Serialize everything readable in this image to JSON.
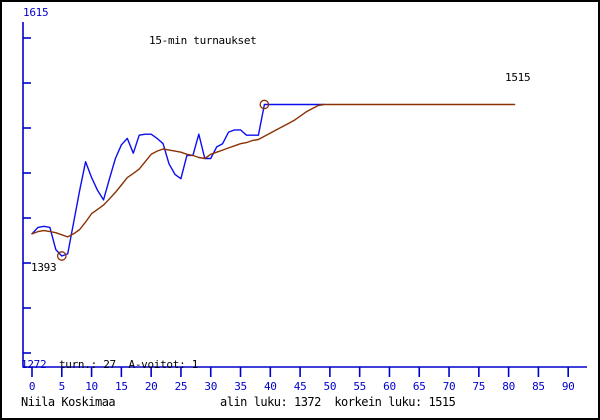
{
  "window": {
    "background": "#ffffff",
    "border_color": "#000000"
  },
  "chart": {
    "title": "15-min turnaukset",
    "player_name": "Niila Koskimaa",
    "y_axis_top_label": "1615",
    "y_axis_bottom_label": "1272",
    "start_rating_label": "1393",
    "final_rating_label": "1515",
    "stats_line": "turn.: 27  A-voitot: 1",
    "summary_line": "alin luku: 1372  korkein luku: 1515",
    "colors": {
      "axis_and_text_blue": "#0000cc",
      "rating_line_blue": "#0d0df0",
      "trend_line_brown": "#8a3203",
      "text_black": "#000000"
    }
  },
  "chart_data": {
    "type": "line",
    "title": "15-min turnaukset",
    "xlabel": "",
    "ylabel": "",
    "xlim": [
      0,
      93
    ],
    "ylim": [
      1272,
      1615
    ],
    "x_ticks": [
      0,
      5,
      10,
      15,
      20,
      25,
      30,
      35,
      40,
      45,
      50,
      55,
      60,
      65,
      70,
      75,
      80,
      85,
      90
    ],
    "grid": false,
    "legend": "none",
    "series": [
      {
        "name": "rating",
        "color": "#0d0df0",
        "values": [
          1393,
          1399,
          1400,
          1399,
          1378,
          1372,
          1374,
          1404,
          1434,
          1461,
          1446,
          1434,
          1425,
          1445,
          1464,
          1477,
          1483,
          1469,
          1486,
          1487,
          1487,
          1483,
          1478,
          1459,
          1449,
          1445,
          1467,
          1467,
          1487,
          1464,
          1464,
          1475,
          1478,
          1489,
          1491,
          1491,
          1486,
          1486,
          1486,
          1515,
          1515,
          1515,
          1515,
          1515,
          1515,
          1515,
          1515,
          1515,
          1515,
          1515
        ]
      },
      {
        "name": "trend",
        "color": "#8a3203",
        "values": [
          1393,
          1395,
          1396,
          1395,
          1394,
          1392,
          1390,
          1393,
          1397,
          1404,
          1412,
          1416,
          1420,
          1426,
          1432,
          1439,
          1446,
          1450,
          1454,
          1461,
          1468,
          1471,
          1473,
          1472,
          1471,
          1470,
          1468,
          1467,
          1465,
          1464,
          1468,
          1470,
          1472,
          1474,
          1476,
          1478,
          1479,
          1481,
          1482,
          1485,
          1488,
          1491,
          1494,
          1497,
          1500,
          1504,
          1508,
          1511,
          1514,
          1515,
          1515,
          1515,
          1515,
          1515,
          1515,
          1515,
          1515,
          1515,
          1515,
          1515,
          1515,
          1515,
          1515,
          1515,
          1515,
          1515,
          1515,
          1515,
          1515,
          1515,
          1515,
          1515,
          1515,
          1515,
          1515,
          1515,
          1515,
          1515,
          1515,
          1515,
          1515,
          1515
        ]
      }
    ],
    "markers": [
      {
        "name": "lowest",
        "series": "rating",
        "x": 5,
        "value": 1372
      },
      {
        "name": "highest",
        "series": "rating",
        "x": 39,
        "value": 1515
      }
    ],
    "annotations": [
      {
        "text": "1393",
        "meaning": "first rating"
      },
      {
        "text": "1515",
        "meaning": "final rating"
      },
      {
        "text": "alin luku: 1372",
        "meaning": "lowest value"
      },
      {
        "text": "korkein luku: 1515",
        "meaning": "highest value"
      }
    ]
  }
}
